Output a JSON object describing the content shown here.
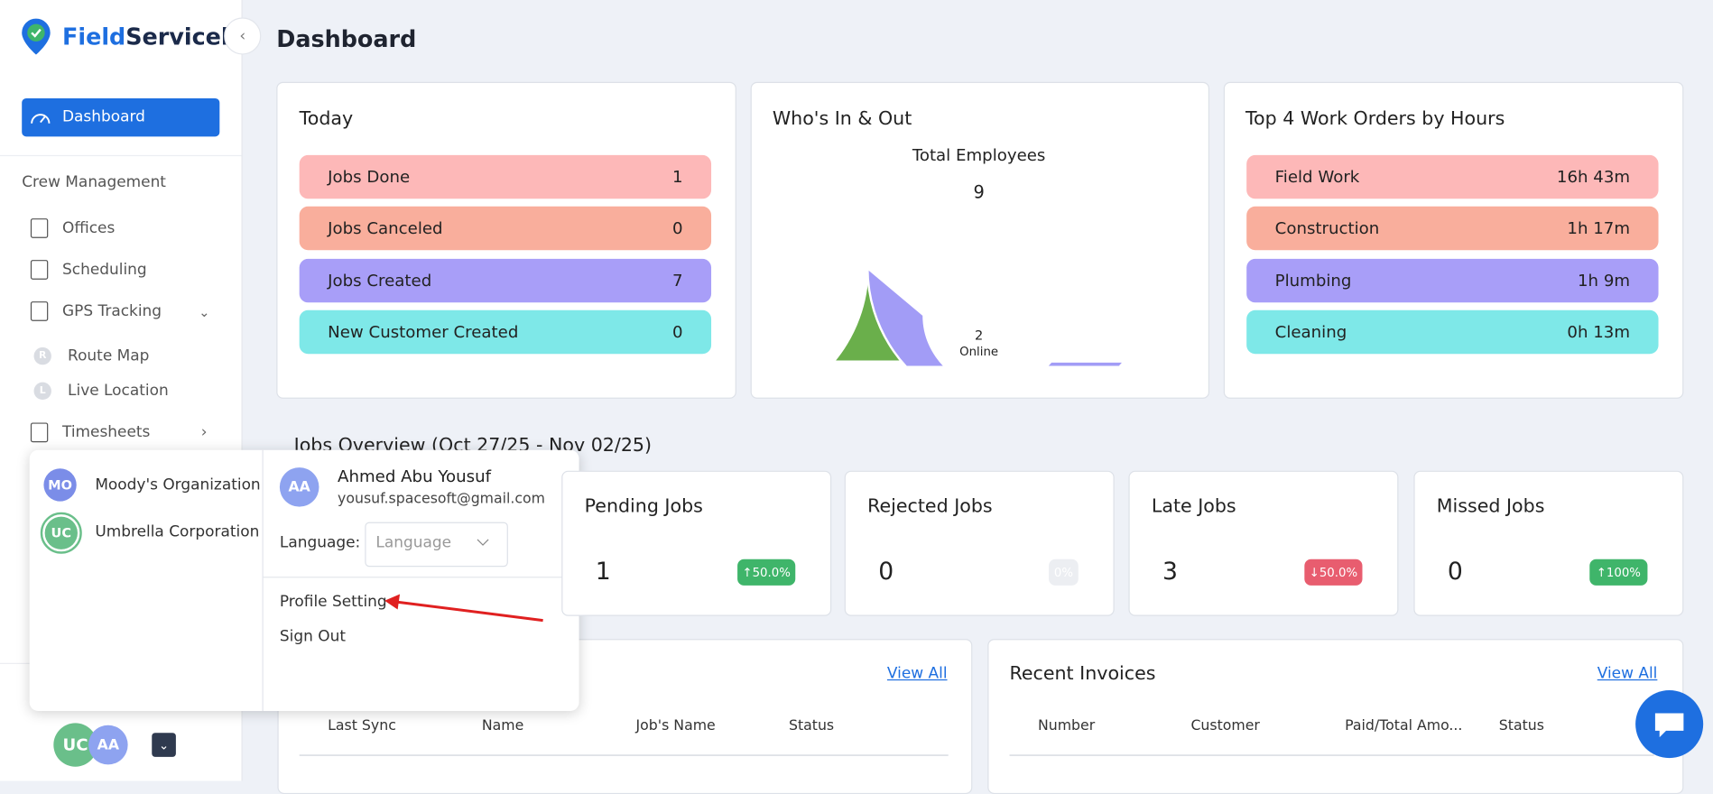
{
  "sidebar": {
    "brand_part1": "Field",
    "brand_part2": "Servicely",
    "active_item": "Dashboard",
    "section_title": "Crew Management",
    "items": [
      "Offices",
      "Scheduling",
      "GPS Tracking",
      "Timesheets"
    ],
    "sub_items": [
      {
        "icon": "R",
        "label": "Route Map"
      },
      {
        "icon": "L",
        "label": "Live Location"
      }
    ],
    "user_initials": [
      "UC",
      "AA"
    ]
  },
  "page_title": "Dashboard",
  "today": {
    "title": "Today",
    "rows": [
      {
        "label": "Jobs Done",
        "value": "1"
      },
      {
        "label": "Jobs Canceled",
        "value": "0"
      },
      {
        "label": "Jobs Created",
        "value": "7"
      },
      {
        "label": "New Customer Created",
        "value": "0"
      }
    ]
  },
  "whos_in_out": {
    "title": "Who's In & Out",
    "total_label": "Total Employees",
    "total": 9,
    "online": 2,
    "online_label": "Online"
  },
  "top_work_orders": {
    "title": "Top 4 Work Orders by Hours",
    "rows": [
      {
        "label": "Field Work",
        "value": "16h 43m"
      },
      {
        "label": "Construction",
        "value": "1h 17m"
      },
      {
        "label": "Plumbing",
        "value": "1h 9m"
      },
      {
        "label": "Cleaning",
        "value": "0h 13m"
      }
    ]
  },
  "jobs_overview": {
    "title": "Jobs Overview (Oct 27/25 - Nov 02/25)",
    "cards": [
      {
        "label": "Pending Jobs",
        "value": "1",
        "badge": "↑50.0%"
      },
      {
        "label": "Rejected Jobs",
        "value": "0",
        "badge": "0%"
      },
      {
        "label": "Late Jobs",
        "value": "3",
        "badge": "↓50.0%"
      },
      {
        "label": "Missed Jobs",
        "value": "0",
        "badge": "↑100%"
      }
    ]
  },
  "recent_jobs": {
    "link": "View All",
    "columns": [
      "Last Sync",
      "Name",
      "Job's Name",
      "Status"
    ]
  },
  "recent_invoices": {
    "title": "Recent Invoices",
    "link": "View All",
    "columns": [
      "Number",
      "Customer",
      "Paid/Total Amo...",
      "Status"
    ]
  },
  "popup": {
    "organizations": [
      {
        "initials": "MO",
        "name": "Moody's Organization"
      },
      {
        "initials": "UC",
        "name": "Umbrella Corporation"
      }
    ],
    "user": {
      "initials": "AA",
      "name": "Ahmed Abu Yousuf",
      "email": "yousuf.spacesoft@gmail.com"
    },
    "language_label": "Language:",
    "language_placeholder": "Language",
    "menu": [
      "Profile Setting",
      "Sign Out"
    ]
  }
}
